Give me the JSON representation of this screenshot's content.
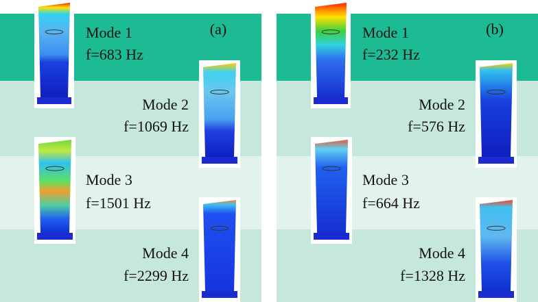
{
  "panels": [
    {
      "label": "(a)",
      "modes": [
        {
          "name": "Mode 1",
          "frequency": "f=683 Hz"
        },
        {
          "name": "Mode 2",
          "frequency": "f=1069 Hz"
        },
        {
          "name": "Mode 3",
          "frequency": "f=1501 Hz"
        },
        {
          "name": "Mode 4",
          "frequency": "f=2299 Hz"
        }
      ]
    },
    {
      "label": "(b)",
      "modes": [
        {
          "name": "Mode 1",
          "frequency": "f=232 Hz"
        },
        {
          "name": "Mode 2",
          "frequency": "f=576 Hz"
        },
        {
          "name": "Mode 3",
          "frequency": "f=664 Hz"
        },
        {
          "name": "Mode 4",
          "frequency": "f=1328 Hz"
        }
      ]
    }
  ]
}
